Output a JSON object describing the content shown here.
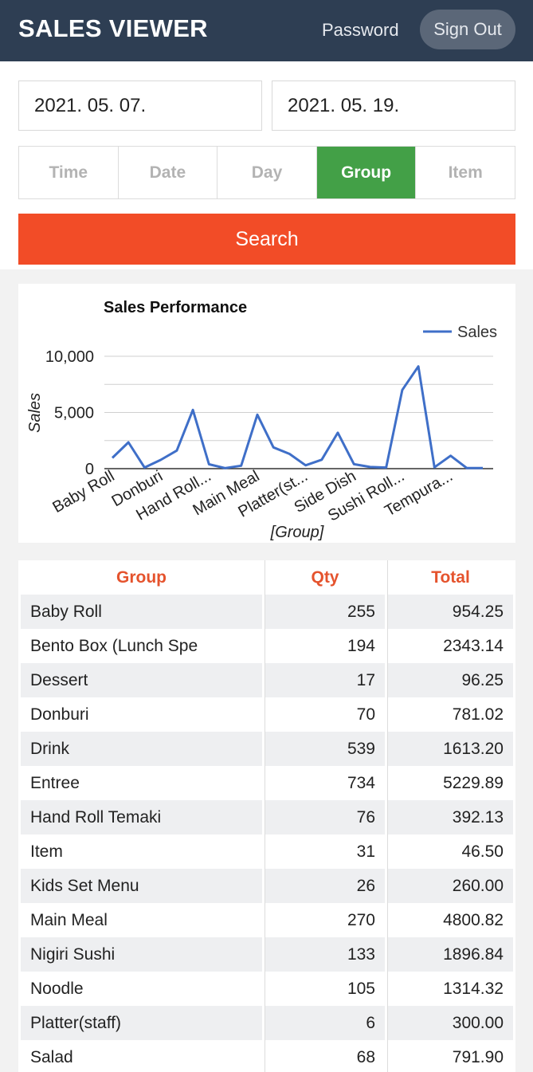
{
  "header": {
    "title": "SALES VIEWER",
    "password_link": "Password",
    "signout_label": "Sign Out"
  },
  "filters": {
    "start_date": "2021. 05. 07.",
    "end_date": "2021. 05. 19."
  },
  "tabs": [
    {
      "label": "Time",
      "active": false
    },
    {
      "label": "Date",
      "active": false
    },
    {
      "label": "Day",
      "active": false
    },
    {
      "label": "Group",
      "active": true
    },
    {
      "label": "Item",
      "active": false
    }
  ],
  "search_label": "Search",
  "colors": {
    "header_bg": "#2e3e53",
    "active_tab": "#43a047",
    "search_btn": "#f24c27",
    "line": "#3f6fc8",
    "table_header": "#e5532d"
  },
  "chart_data": {
    "type": "line",
    "title": "Sales Performance",
    "xlabel": "[Group]",
    "ylabel": "Sales",
    "legend": "top-right",
    "ylim": [
      0,
      10000
    ],
    "yticks": [
      "10,000",
      "5,000",
      "0"
    ],
    "xtick_labels": [
      "Baby Roll",
      "Donburi",
      "Hand Roll...",
      "Main Meal",
      "Platter(st...",
      "Side Dish",
      "Sushi Roll...",
      "Tempura..."
    ],
    "series": [
      {
        "name": "Sales",
        "values": [
          954.25,
          2343.14,
          96.25,
          781.02,
          1613.2,
          5229.89,
          392.13,
          46.5,
          260,
          4800.82,
          1896.84,
          1314.32,
          300,
          791.9,
          3200,
          400,
          150,
          100,
          7000,
          9100,
          120,
          1150,
          60,
          50
        ]
      }
    ]
  },
  "table": {
    "headers": [
      "Group",
      "Qty",
      "Total"
    ],
    "rows": [
      [
        "Baby Roll",
        "255",
        "954.25"
      ],
      [
        "Bento Box (Lunch Spe",
        "194",
        "2343.14"
      ],
      [
        "Dessert",
        "17",
        "96.25"
      ],
      [
        "Donburi",
        "70",
        "781.02"
      ],
      [
        "Drink",
        "539",
        "1613.20"
      ],
      [
        "Entree",
        "734",
        "5229.89"
      ],
      [
        "Hand Roll Temaki",
        "76",
        "392.13"
      ],
      [
        "Item",
        "31",
        "46.50"
      ],
      [
        "Kids Set Menu",
        "26",
        "260.00"
      ],
      [
        "Main Meal",
        "270",
        "4800.82"
      ],
      [
        "Nigiri Sushi",
        "133",
        "1896.84"
      ],
      [
        "Noodle",
        "105",
        "1314.32"
      ],
      [
        "Platter(staff)",
        "6",
        "300.00"
      ],
      [
        "Salad",
        "68",
        "791.90"
      ]
    ]
  }
}
